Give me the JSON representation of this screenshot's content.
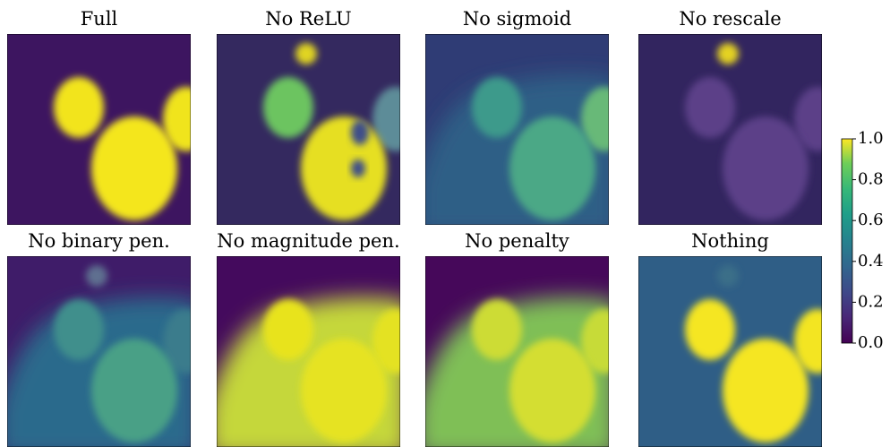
{
  "figure": {
    "panels": [
      {
        "title": "Full"
      },
      {
        "title": "No ReLU"
      },
      {
        "title": "No sigmoid"
      },
      {
        "title": "No rescale"
      },
      {
        "title": "No binary pen."
      },
      {
        "title": "No magnitude pen."
      },
      {
        "title": "No penalty"
      },
      {
        "title": "Nothing"
      }
    ],
    "colorbar": {
      "colormap": "viridis",
      "lim": [
        0,
        1
      ],
      "ticks": [
        {
          "value": 0,
          "label": "0.0"
        },
        {
          "value": 0.2,
          "label": "0.2"
        },
        {
          "value": 0.4,
          "label": "0.4"
        },
        {
          "value": 0.6,
          "label": "0.6"
        },
        {
          "value": 0.8,
          "label": "0.8"
        },
        {
          "value": 1,
          "label": "1.0"
        }
      ]
    }
  }
}
